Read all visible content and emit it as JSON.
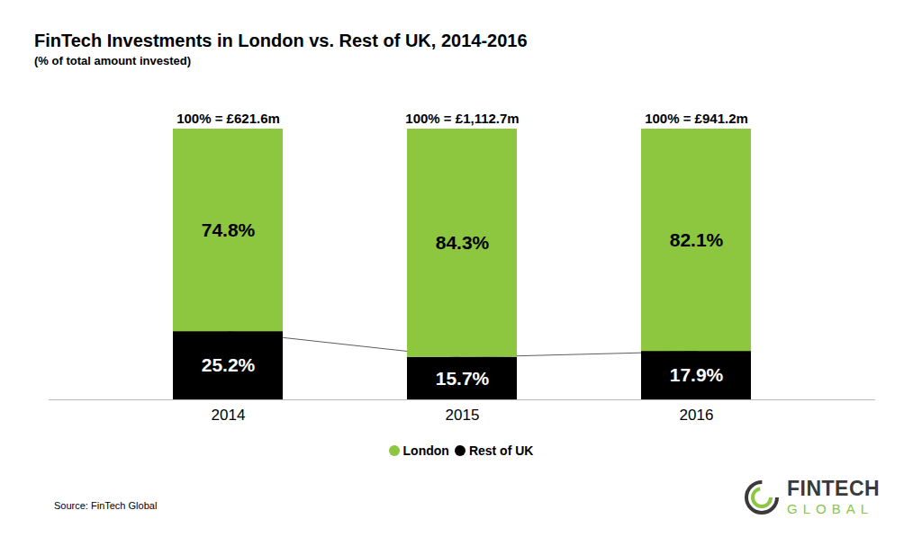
{
  "chart_data": {
    "type": "bar",
    "title": "FinTech Investments in London vs. Rest of UK, 2014-2016",
    "subtitle": "(% of total amount invested)",
    "categories": [
      "2014",
      "2015",
      "2016"
    ],
    "series": [
      {
        "name": "London",
        "color": "#8dc63f",
        "values": [
          74.8,
          84.3,
          82.1
        ],
        "value_labels": [
          "74.8%",
          "84.3%",
          "82.1%"
        ]
      },
      {
        "name": "Rest of UK",
        "color": "#000000",
        "values": [
          25.2,
          15.7,
          17.9
        ],
        "value_labels": [
          "25.2%",
          "15.7%",
          "17.9%"
        ]
      }
    ],
    "stacked": true,
    "data_labels": true,
    "ylim": [
      0,
      100
    ],
    "yticks": [],
    "tick_labels": "x",
    "legend": "bottom",
    "annotations": [
      "100% = £621.6m",
      "100% = £1,112.7m",
      "100% = £941.2m"
    ],
    "source": "Source: FinTech Global",
    "logo": [
      "FINTECH",
      "GLOBAL"
    ]
  }
}
